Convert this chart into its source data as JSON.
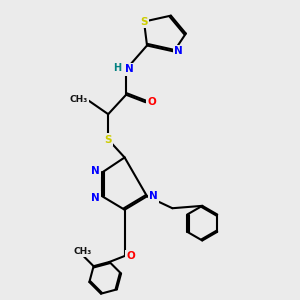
{
  "bg_color": "#ebebeb",
  "atom_colors": {
    "S": "#cccc00",
    "N": "#0000ff",
    "O": "#ff0000",
    "C": "#000000",
    "H": "#008080"
  },
  "bond_color": "#000000",
  "bond_width": 1.5,
  "figsize": [
    3.0,
    3.0
  ],
  "dpi": 100
}
